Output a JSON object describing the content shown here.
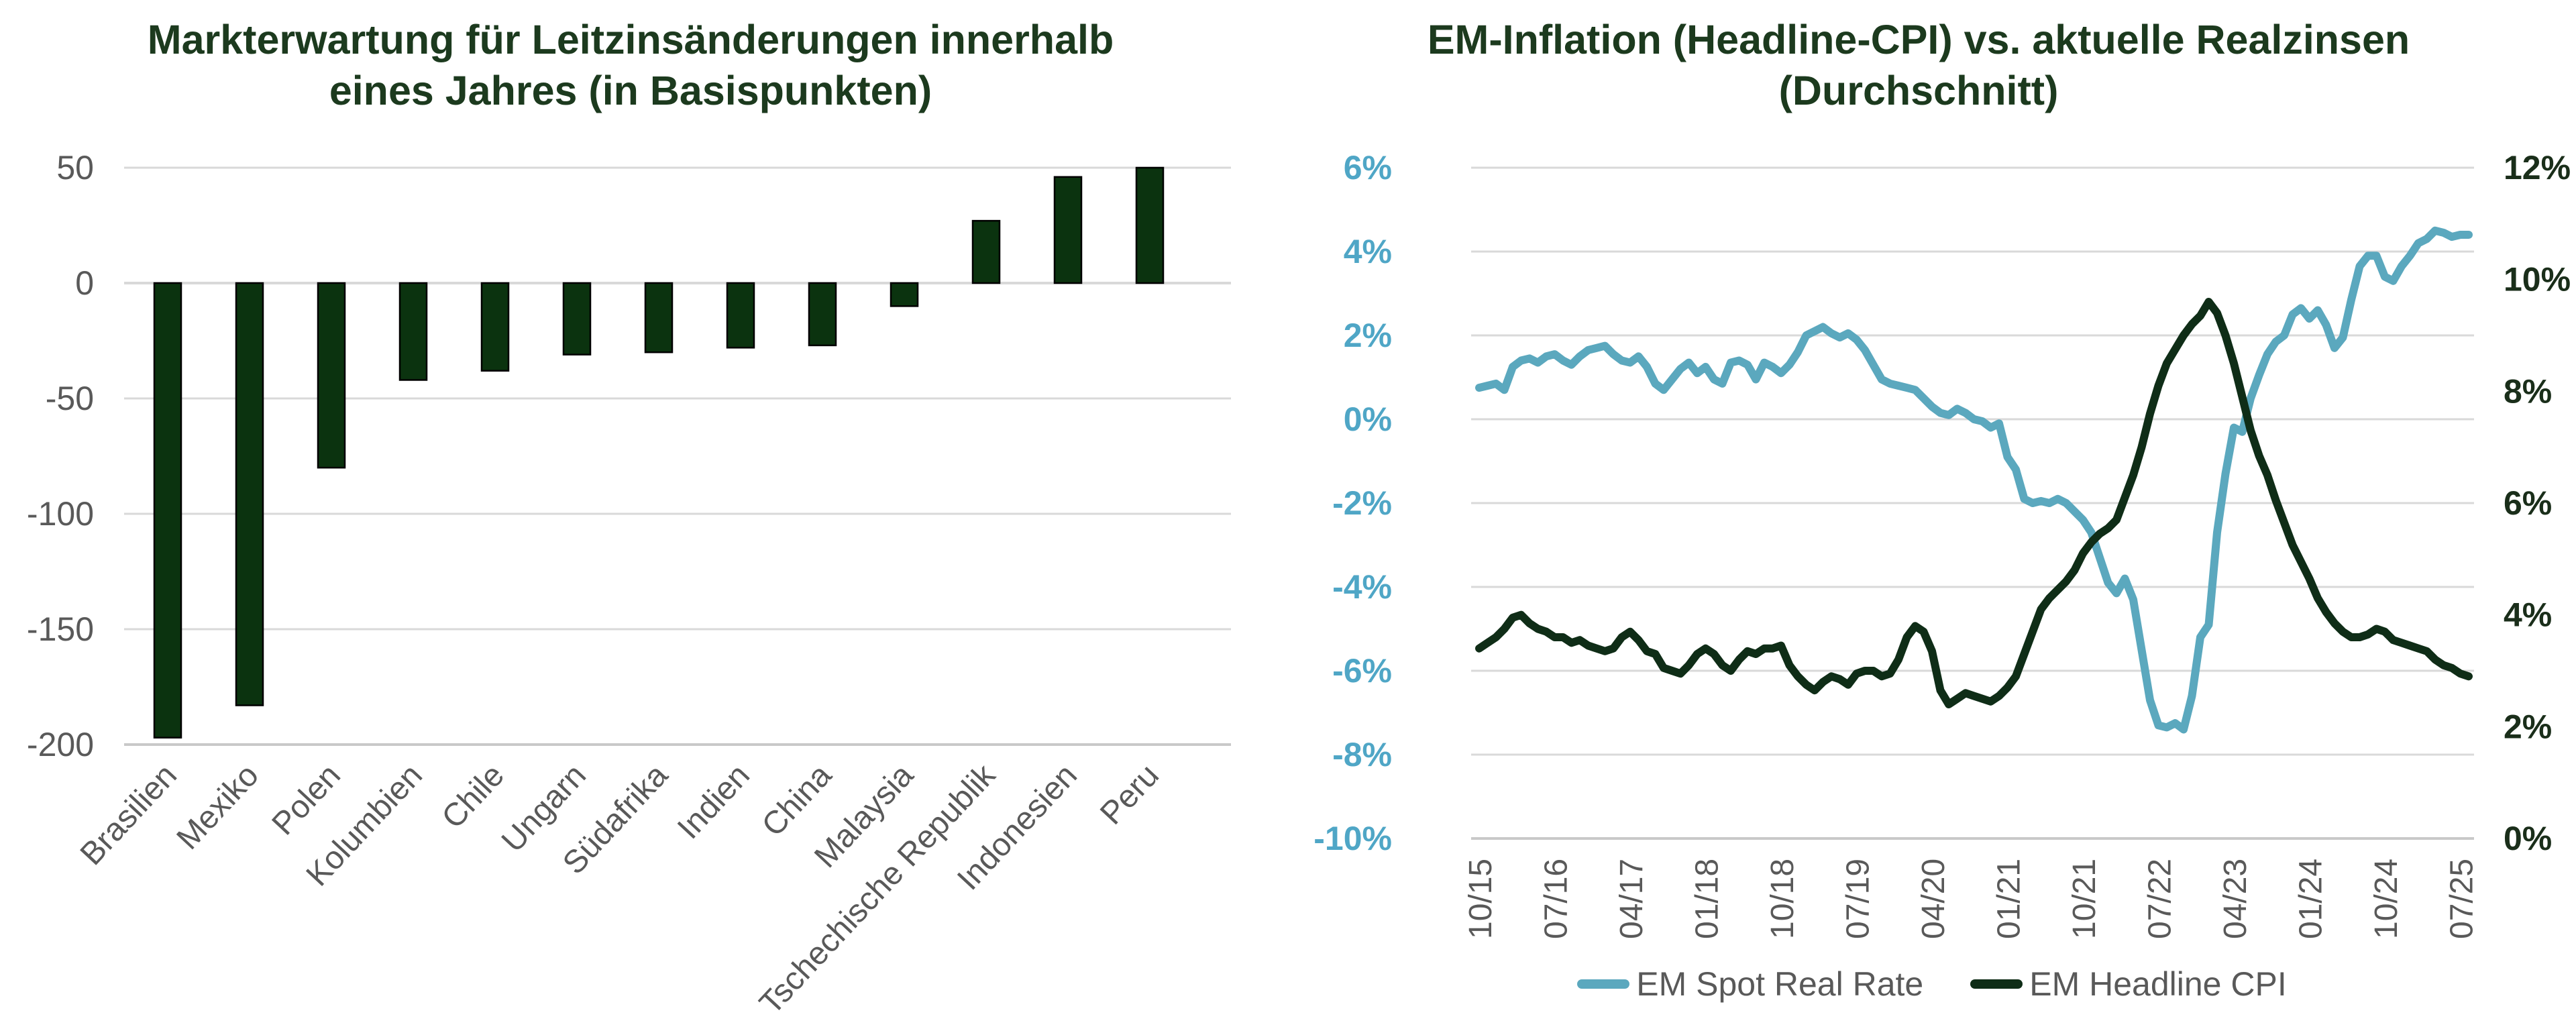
{
  "page": {
    "background": "#FFFFFF"
  },
  "colors": {
    "title": "#1C3A1E",
    "bar_fill": "#0B330F",
    "bar_stroke": "#000000",
    "gridline": "#D9D9D9",
    "gridline_strong": "#C9C9C9",
    "axis_tick_label": "#595959",
    "spot_line": "#5BA8BE",
    "left_axis_label": "#4FA6C6",
    "cpi_line": "#0F2D17",
    "right_axis_label": "#1A2E1A",
    "legend_text": "#595959"
  },
  "chart_data": [
    {
      "type": "bar",
      "title": "Markterwartung für Leitzinsänderungen innerhalb eines Jahres (in Basispunkten)",
      "title_lines": [
        "Markterwartung für Leitzinsänderungen innerhalb",
        "eines Jahres (in Basispunkten)"
      ],
      "categories": [
        "Brasilien",
        "Mexiko",
        "Polen",
        "Kolumbien",
        "Chile",
        "Ungarn",
        "Südafrika",
        "Indien",
        "China",
        "Malaysia",
        "Tschechische Republik",
        "Indonesien",
        "Peru"
      ],
      "values": [
        -197,
        -183,
        -80,
        -42,
        -38,
        -31,
        -30,
        -28,
        -27,
        -10,
        27,
        46,
        50
      ],
      "xlabel": "",
      "ylabel": "",
      "y_ticks": [
        50,
        0,
        -50,
        -100,
        -150,
        -200
      ],
      "ylim": [
        -205,
        55
      ],
      "grid": "horizontal",
      "legend_position": "none"
    },
    {
      "type": "line",
      "title": "EM-Inflation (Headline-CPI) vs. aktuelle Realzinsen (Durchschnitt)",
      "title_lines": [
        "EM-Inflation (Headline-CPI) vs. aktuelle Realzinsen",
        "(Durchschnitt)"
      ],
      "x_start": "2015-10",
      "x_step_months": 1,
      "x_tick_labels": [
        "10/15",
        "07/16",
        "04/17",
        "01/18",
        "10/18",
        "07/19",
        "04/20",
        "01/21",
        "10/21",
        "07/22",
        "04/23",
        "01/24",
        "10/24",
        "07/25"
      ],
      "x_tick_every_months": 9,
      "left_axis": {
        "tick_labels": [
          "6%",
          "4%",
          "2%",
          "0%",
          "-2%",
          "-4%",
          "-6%",
          "-8%",
          "-10%"
        ],
        "tick_values": [
          6,
          4,
          2,
          0,
          -2,
          -4,
          -6,
          -8,
          -10
        ],
        "min": -10,
        "max": 6
      },
      "right_axis": {
        "tick_labels": [
          "12%",
          "10%",
          "8%",
          "6%",
          "4%",
          "2%",
          "0%"
        ],
        "tick_values": [
          12,
          10,
          8,
          6,
          4,
          2,
          0
        ],
        "min": 0,
        "max": 12
      },
      "grid": "horizontal",
      "legend_position": "bottom",
      "series": [
        {
          "name": "EM Spot Real Rate",
          "axis": "left",
          "color": "#5BA8BE",
          "values": [
            0.75,
            0.8,
            0.85,
            0.7,
            1.25,
            1.4,
            1.45,
            1.35,
            1.5,
            1.55,
            1.4,
            1.3,
            1.5,
            1.65,
            1.7,
            1.75,
            1.55,
            1.4,
            1.35,
            1.5,
            1.25,
            0.85,
            0.7,
            0.95,
            1.2,
            1.35,
            1.1,
            1.25,
            0.95,
            0.85,
            1.35,
            1.4,
            1.3,
            0.95,
            1.35,
            1.25,
            1.1,
            1.3,
            1.6,
            2.0,
            2.1,
            2.2,
            2.05,
            1.95,
            2.05,
            1.9,
            1.65,
            1.3,
            0.95,
            0.85,
            0.8,
            0.75,
            0.7,
            0.5,
            0.3,
            0.15,
            0.1,
            0.25,
            0.15,
            0.0,
            -0.05,
            -0.2,
            -0.1,
            -0.9,
            -1.2,
            -1.9,
            -2.0,
            -1.95,
            -2.0,
            -1.9,
            -2.0,
            -2.2,
            -2.4,
            -2.7,
            -3.3,
            -3.9,
            -4.15,
            -3.8,
            -4.3,
            -5.5,
            -6.7,
            -7.3,
            -7.35,
            -7.25,
            -7.4,
            -6.6,
            -5.2,
            -4.9,
            -2.7,
            -1.3,
            -0.2,
            -0.3,
            0.5,
            1.05,
            1.55,
            1.85,
            2.0,
            2.5,
            2.65,
            2.4,
            2.6,
            2.25,
            1.7,
            1.95,
            2.85,
            3.65,
            3.9,
            3.9,
            3.4,
            3.3,
            3.65,
            3.9,
            4.2,
            4.3,
            4.5,
            4.45,
            4.35,
            4.4,
            4.4
          ]
        },
        {
          "name": "EM Headline CPI",
          "axis": "right",
          "color": "#0F2D17",
          "values": [
            3.4,
            3.5,
            3.6,
            3.75,
            3.95,
            4.0,
            3.85,
            3.75,
            3.7,
            3.6,
            3.6,
            3.5,
            3.55,
            3.45,
            3.4,
            3.35,
            3.4,
            3.6,
            3.7,
            3.55,
            3.35,
            3.3,
            3.05,
            3.0,
            2.95,
            3.1,
            3.3,
            3.4,
            3.3,
            3.1,
            3.0,
            3.2,
            3.35,
            3.3,
            3.4,
            3.4,
            3.45,
            3.1,
            2.9,
            2.75,
            2.65,
            2.8,
            2.9,
            2.85,
            2.75,
            2.95,
            3.0,
            3.0,
            2.9,
            2.95,
            3.2,
            3.6,
            3.8,
            3.7,
            3.35,
            2.65,
            2.4,
            2.5,
            2.6,
            2.55,
            2.5,
            2.45,
            2.55,
            2.7,
            2.9,
            3.3,
            3.7,
            4.1,
            4.3,
            4.45,
            4.6,
            4.8,
            5.1,
            5.3,
            5.45,
            5.55,
            5.7,
            6.1,
            6.5,
            7.0,
            7.6,
            8.1,
            8.5,
            8.75,
            9.0,
            9.2,
            9.35,
            9.6,
            9.4,
            9.0,
            8.5,
            7.9,
            7.3,
            6.85,
            6.5,
            6.05,
            5.65,
            5.25,
            4.95,
            4.65,
            4.3,
            4.05,
            3.85,
            3.7,
            3.6,
            3.6,
            3.65,
            3.75,
            3.7,
            3.55,
            3.5,
            3.45,
            3.4,
            3.35,
            3.2,
            3.1,
            3.05,
            2.95,
            2.9
          ]
        }
      ]
    }
  ]
}
